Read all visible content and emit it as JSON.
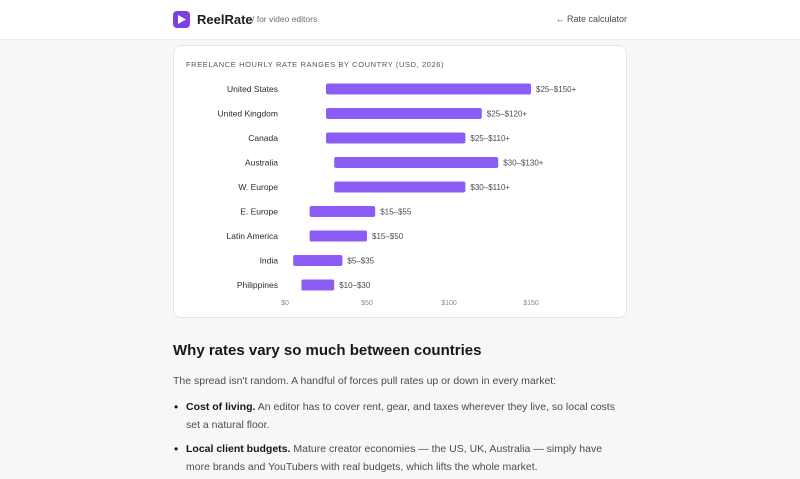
{
  "header": {
    "brand": "ReelRate",
    "tagline": "/ for video editors",
    "back_link": "← Rate calculator"
  },
  "chart_data": {
    "type": "bar",
    "title": "FREELANCE HOURLY RATE RANGES BY COUNTRY (USD, 2026)",
    "categories": [
      "United States",
      "United Kingdom",
      "Canada",
      "Australia",
      "W. Europe",
      "E. Europe",
      "Latin America",
      "India",
      "Philippines"
    ],
    "ranges": [
      [
        25,
        150
      ],
      [
        25,
        120
      ],
      [
        25,
        110
      ],
      [
        30,
        130
      ],
      [
        30,
        110
      ],
      [
        15,
        55
      ],
      [
        15,
        50
      ],
      [
        5,
        35
      ],
      [
        10,
        30
      ]
    ],
    "labels": [
      "$25–$150+",
      "$25–$120+",
      "$25–$110+",
      "$30–$130+",
      "$30–$110+",
      "$15–$55",
      "$15–$50",
      "$5–$35",
      "$10–$30"
    ],
    "x_ticks": [
      "$0",
      "$50",
      "$100",
      "$150"
    ],
    "xlim": [
      0,
      150
    ],
    "bar_color": "#8b5cf6"
  },
  "article": {
    "heading": "Why rates vary so much between countries",
    "intro": "The spread isn't random. A handful of forces pull rates up or down in every market:",
    "points": [
      {
        "bold": "Cost of living.",
        "text": " An editor has to cover rent, gear, and taxes wherever they live, so local costs set a natural floor."
      },
      {
        "bold": "Local client budgets.",
        "text": " Mature creator economies — the US, UK, Australia — simply have more brands and YouTubers with real budgets, which lifts the whole market."
      }
    ]
  }
}
